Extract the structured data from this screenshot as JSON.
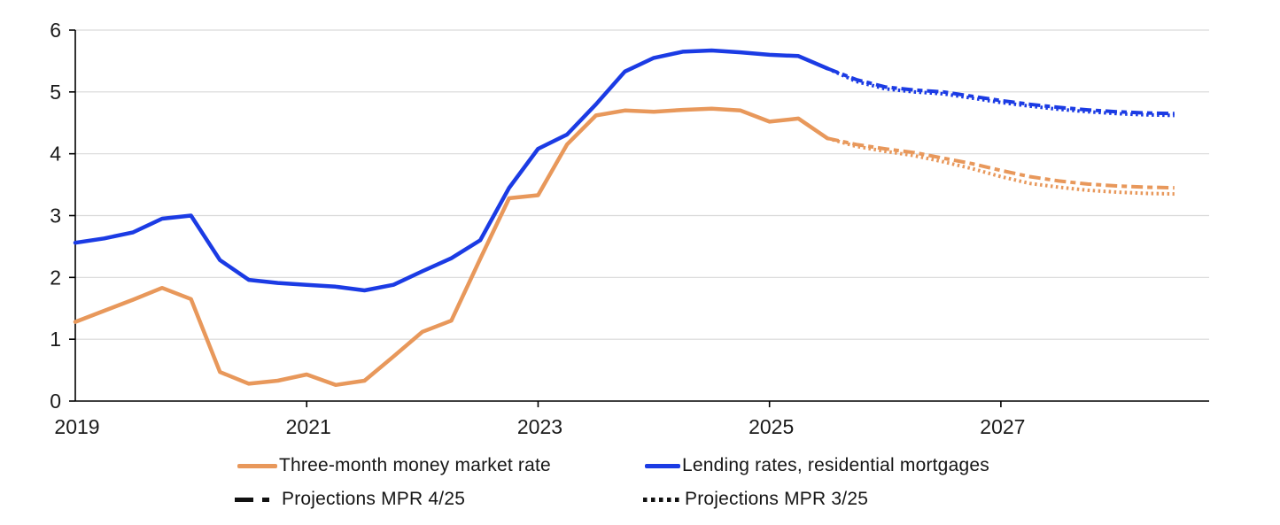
{
  "colors": {
    "orange": "#E8985B",
    "blue": "#1B3BE4",
    "grid": "#D9D9D9",
    "axis": "#000000",
    "tick_text": "#1A1A1A",
    "legend_text": "#161616",
    "projection_legend": "#111111",
    "background": "#FFFFFF"
  },
  "legend": {
    "items": [
      {
        "label": "Three-month money market rate",
        "swatch": "solid-orange"
      },
      {
        "label": "Lending rates, residential mortgages",
        "swatch": "solid-blue"
      },
      {
        "label": "Projections MPR 4/25",
        "swatch": "dashed-black"
      },
      {
        "label": "Projections MPR 3/25",
        "swatch": "dotted-black"
      }
    ]
  },
  "chart_data": {
    "type": "line",
    "title": "",
    "xlabel": "",
    "ylabel": "",
    "grid": true,
    "legend_position": "bottom",
    "x_axis": {
      "range": [
        2019,
        2028.8
      ],
      "label_values": [
        2019,
        2021,
        2023,
        2025,
        2027
      ],
      "labels": [
        "2019",
        "2021",
        "2023",
        "2025",
        "2027"
      ],
      "tick_mark_values": [
        2021,
        2023,
        2025,
        2027
      ]
    },
    "y_axis": {
      "range": [
        0,
        6
      ],
      "values": [
        0,
        1,
        2,
        3,
        4,
        5,
        6
      ],
      "labels": [
        "0",
        "1",
        "2",
        "3",
        "4",
        "5",
        "6"
      ]
    },
    "series": [
      {
        "name": "Projections MPR 3/25 (three-month money market rate)",
        "style": "dotted",
        "color": "#E8985B",
        "width": 4,
        "points": [
          [
            2025.5,
            4.25
          ],
          [
            2025.75,
            4.12
          ],
          [
            2026.0,
            4.04
          ],
          [
            2026.25,
            3.97
          ],
          [
            2026.5,
            3.87
          ],
          [
            2026.75,
            3.76
          ],
          [
            2027.0,
            3.63
          ],
          [
            2027.25,
            3.52
          ],
          [
            2027.5,
            3.46
          ],
          [
            2027.75,
            3.41
          ],
          [
            2028.0,
            3.38
          ],
          [
            2028.25,
            3.36
          ],
          [
            2028.5,
            3.35
          ]
        ]
      },
      {
        "name": "Projections MPR 3/25 (lending rates, residential mortgages)",
        "style": "dotted",
        "color": "#1B3BE4",
        "width": 4,
        "points": [
          [
            2025.5,
            5.38
          ],
          [
            2025.75,
            5.17
          ],
          [
            2026.0,
            5.05
          ],
          [
            2026.25,
            5.0
          ],
          [
            2026.5,
            4.97
          ],
          [
            2026.75,
            4.9
          ],
          [
            2027.0,
            4.83
          ],
          [
            2027.25,
            4.77
          ],
          [
            2027.5,
            4.72
          ],
          [
            2027.75,
            4.68
          ],
          [
            2028.0,
            4.65
          ],
          [
            2028.25,
            4.63
          ],
          [
            2028.5,
            4.62
          ]
        ]
      },
      {
        "name": "Projections MPR 4/25 (three-month money market rate)",
        "style": "dashed",
        "color": "#E8985B",
        "width": 4,
        "points": [
          [
            2025.5,
            4.25
          ],
          [
            2025.75,
            4.15
          ],
          [
            2026.0,
            4.08
          ],
          [
            2026.25,
            4.02
          ],
          [
            2026.5,
            3.93
          ],
          [
            2026.75,
            3.84
          ],
          [
            2027.0,
            3.73
          ],
          [
            2027.25,
            3.63
          ],
          [
            2027.5,
            3.56
          ],
          [
            2027.75,
            3.51
          ],
          [
            2028.0,
            3.48
          ],
          [
            2028.25,
            3.46
          ],
          [
            2028.5,
            3.45
          ]
        ]
      },
      {
        "name": "Projections MPR 4/25 (lending rates, residential mortgages)",
        "style": "dashed",
        "color": "#1B3BE4",
        "width": 4,
        "points": [
          [
            2025.5,
            5.38
          ],
          [
            2025.75,
            5.2
          ],
          [
            2026.0,
            5.08
          ],
          [
            2026.25,
            5.03
          ],
          [
            2026.5,
            5.0
          ],
          [
            2026.75,
            4.93
          ],
          [
            2027.0,
            4.86
          ],
          [
            2027.25,
            4.8
          ],
          [
            2027.5,
            4.75
          ],
          [
            2027.75,
            4.71
          ],
          [
            2028.0,
            4.68
          ],
          [
            2028.25,
            4.66
          ],
          [
            2028.5,
            4.65
          ]
        ]
      },
      {
        "name": "Three-month money market rate",
        "style": "solid",
        "color": "#E8985B",
        "width": 4.5,
        "points": [
          [
            2019.0,
            1.28
          ],
          [
            2019.25,
            1.46
          ],
          [
            2019.5,
            1.64
          ],
          [
            2019.75,
            1.83
          ],
          [
            2020.0,
            1.65
          ],
          [
            2020.25,
            0.47
          ],
          [
            2020.5,
            0.28
          ],
          [
            2020.75,
            0.33
          ],
          [
            2021.0,
            0.43
          ],
          [
            2021.25,
            0.26
          ],
          [
            2021.5,
            0.33
          ],
          [
            2021.75,
            0.72
          ],
          [
            2022.0,
            1.12
          ],
          [
            2022.25,
            1.3
          ],
          [
            2022.5,
            2.3
          ],
          [
            2022.75,
            3.28
          ],
          [
            2023.0,
            3.33
          ],
          [
            2023.25,
            4.15
          ],
          [
            2023.5,
            4.62
          ],
          [
            2023.75,
            4.7
          ],
          [
            2024.0,
            4.68
          ],
          [
            2024.25,
            4.71
          ],
          [
            2024.5,
            4.73
          ],
          [
            2024.75,
            4.7
          ],
          [
            2025.0,
            4.52
          ],
          [
            2025.25,
            4.57
          ],
          [
            2025.5,
            4.25
          ]
        ]
      },
      {
        "name": "Lending rates, residential mortgages",
        "style": "solid",
        "color": "#1B3BE4",
        "width": 4.5,
        "points": [
          [
            2019.0,
            2.56
          ],
          [
            2019.25,
            2.63
          ],
          [
            2019.5,
            2.73
          ],
          [
            2019.75,
            2.95
          ],
          [
            2020.0,
            3.0
          ],
          [
            2020.25,
            2.28
          ],
          [
            2020.5,
            1.96
          ],
          [
            2020.75,
            1.91
          ],
          [
            2021.0,
            1.88
          ],
          [
            2021.25,
            1.85
          ],
          [
            2021.5,
            1.79
          ],
          [
            2021.75,
            1.88
          ],
          [
            2022.0,
            2.1
          ],
          [
            2022.25,
            2.31
          ],
          [
            2022.5,
            2.6
          ],
          [
            2022.75,
            3.45
          ],
          [
            2023.0,
            4.08
          ],
          [
            2023.25,
            4.31
          ],
          [
            2023.5,
            4.8
          ],
          [
            2023.75,
            5.33
          ],
          [
            2024.0,
            5.55
          ],
          [
            2024.25,
            5.65
          ],
          [
            2024.5,
            5.67
          ],
          [
            2024.75,
            5.64
          ],
          [
            2025.0,
            5.6
          ],
          [
            2025.25,
            5.58
          ],
          [
            2025.5,
            5.38
          ]
        ]
      }
    ]
  }
}
